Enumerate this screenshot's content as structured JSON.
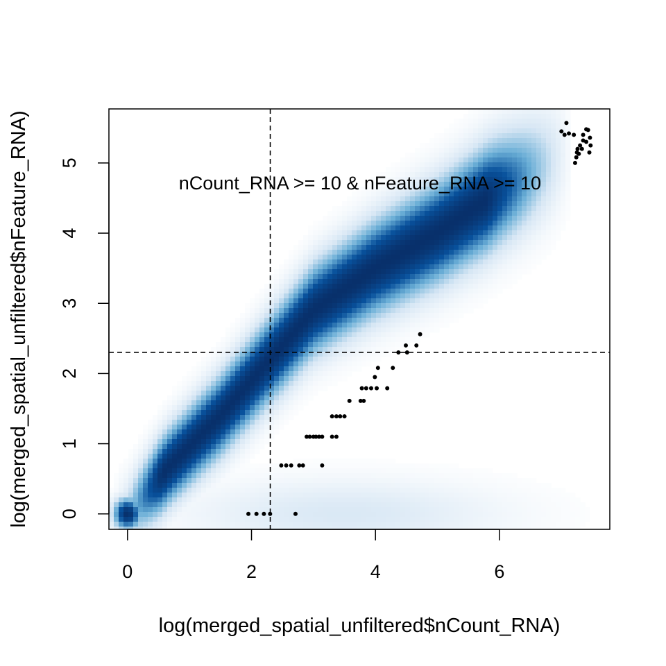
{
  "chart_data": {
    "type": "scatter",
    "title": "",
    "xlabel": "log(merged_spatial_unfiltered$nCount_RNA)",
    "ylabel": "log(merged_spatial_unfiltered$nFeature_RNA)",
    "xlim": [
      -0.3,
      7.78
    ],
    "ylim": [
      -0.22,
      5.77
    ],
    "x_ticks": [
      0,
      2,
      4,
      6
    ],
    "y_ticks": [
      0,
      1,
      2,
      3,
      4,
      5
    ],
    "x_tick_labels": [
      "0",
      "2",
      "4",
      "6"
    ],
    "y_tick_labels": [
      "0",
      "1",
      "2",
      "3",
      "4",
      "5"
    ],
    "grid": false,
    "smooth_density": {
      "colormap": [
        "#ffffff",
        "#d6e6f4",
        "#6aaed6",
        "#08519c",
        "#08306b"
      ],
      "ridge": [
        [
          0.0,
          0.0
        ],
        [
          0.7,
          0.7
        ],
        [
          1.5,
          1.4
        ],
        [
          2.3,
          2.2
        ],
        [
          3.0,
          2.9
        ],
        [
          4.0,
          3.5
        ],
        [
          5.0,
          4.0
        ],
        [
          6.0,
          4.6
        ],
        [
          7.0,
          5.1
        ]
      ]
    },
    "reference_lines": [
      {
        "orientation": "vertical",
        "x": 2.3026,
        "style": "dashed"
      },
      {
        "orientation": "horizontal",
        "y": 2.3026,
        "style": "dashed"
      }
    ],
    "annotations": [
      {
        "text": "nCount_RNA >= 10 & nFeature_RNA >= 10",
        "x": 3.75,
        "y": 4.72
      }
    ],
    "outlier_points": [
      [
        1.95,
        0.0
      ],
      [
        2.08,
        0.0
      ],
      [
        2.2,
        0.0
      ],
      [
        2.3,
        0.0
      ],
      [
        2.71,
        0.0
      ],
      [
        2.48,
        0.69
      ],
      [
        2.56,
        0.69
      ],
      [
        2.64,
        0.69
      ],
      [
        2.77,
        0.69
      ],
      [
        2.83,
        0.69
      ],
      [
        3.14,
        0.69
      ],
      [
        2.89,
        1.1
      ],
      [
        2.94,
        1.1
      ],
      [
        3.0,
        1.1
      ],
      [
        3.04,
        1.1
      ],
      [
        3.09,
        1.1
      ],
      [
        3.14,
        1.1
      ],
      [
        3.3,
        1.1
      ],
      [
        3.37,
        1.1
      ],
      [
        3.3,
        1.39
      ],
      [
        3.37,
        1.39
      ],
      [
        3.43,
        1.39
      ],
      [
        3.5,
        1.39
      ],
      [
        3.58,
        1.61
      ],
      [
        3.76,
        1.61
      ],
      [
        3.81,
        1.61
      ],
      [
        3.78,
        1.79
      ],
      [
        3.85,
        1.79
      ],
      [
        3.93,
        1.79
      ],
      [
        4.02,
        1.79
      ],
      [
        4.19,
        1.79
      ],
      [
        3.99,
        1.95
      ],
      [
        4.04,
        2.08
      ],
      [
        4.28,
        2.08
      ],
      [
        4.37,
        2.3
      ],
      [
        4.51,
        2.3
      ],
      [
        4.49,
        2.4
      ],
      [
        4.66,
        2.4
      ],
      [
        4.72,
        2.56
      ],
      [
        7.0,
        5.45
      ],
      [
        7.05,
        5.4
      ],
      [
        7.08,
        5.57
      ],
      [
        7.12,
        5.42
      ],
      [
        7.2,
        5.4
      ],
      [
        7.22,
        5.0
      ],
      [
        7.24,
        5.08
      ],
      [
        7.25,
        5.15
      ],
      [
        7.26,
        5.2
      ],
      [
        7.28,
        5.13
      ],
      [
        7.3,
        5.25
      ],
      [
        7.33,
        5.2
      ],
      [
        7.35,
        5.32
      ],
      [
        7.35,
        5.4
      ],
      [
        7.4,
        5.48
      ],
      [
        7.43,
        5.47
      ],
      [
        7.45,
        5.15
      ],
      [
        7.4,
        5.3
      ],
      [
        7.46,
        5.36
      ],
      [
        7.47,
        5.25
      ]
    ]
  }
}
